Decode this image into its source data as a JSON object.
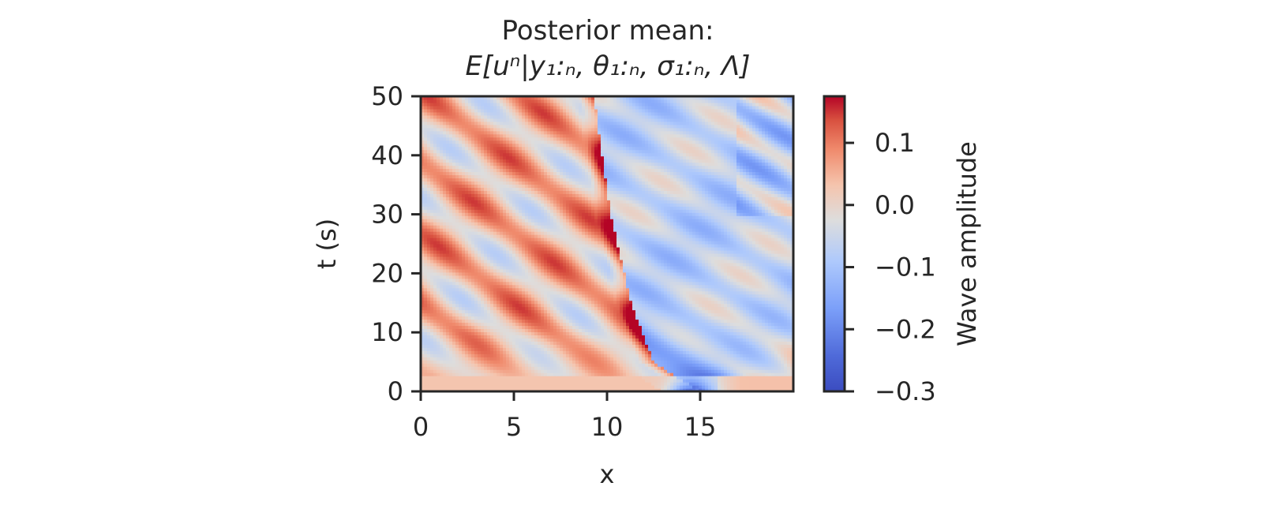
{
  "chart_data": {
    "type": "heatmap",
    "title_line1": "Posterior mean:",
    "title_line2": "E[uⁿ|y₁:ₙ, θ₁:ₙ, σ₁:ₙ, Λ]",
    "xlabel": "x",
    "ylabel": "t (s)",
    "xlim": [
      0,
      20
    ],
    "ylim": [
      0,
      50
    ],
    "x_ticks": [
      0,
      5,
      10,
      15
    ],
    "x_tick_labels": [
      "0",
      "5",
      "10",
      "15"
    ],
    "y_ticks": [
      0,
      10,
      20,
      30,
      40,
      50
    ],
    "y_tick_labels": [
      "0",
      "10",
      "20",
      "30",
      "40",
      "50"
    ],
    "grid": false,
    "colorbar": {
      "label": "Wave amplitude",
      "colormap": "coolwarm",
      "range": [
        -0.3,
        0.175
      ],
      "ticks": [
        0.1,
        0.0,
        -0.1,
        -0.2,
        -0.3
      ],
      "tick_labels": [
        "0.1",
        "0.0",
        "−0.1",
        "−0.2",
        "−0.3"
      ]
    },
    "features": {
      "shock_front": [
        [
          15.0,
          0
        ],
        [
          12.5,
          5
        ],
        [
          11.3,
          15
        ],
        [
          10.2,
          30
        ],
        [
          9.3,
          50
        ]
      ],
      "left_region_mean": 0.03,
      "right_region_mean": -0.06,
      "min_value_location": [
        14.5,
        1
      ]
    }
  },
  "colors": {
    "cmap_low": "#3b4cc0",
    "cmap_mid": "#dddddd",
    "cmap_high": "#b40426",
    "axis": "#262626"
  }
}
